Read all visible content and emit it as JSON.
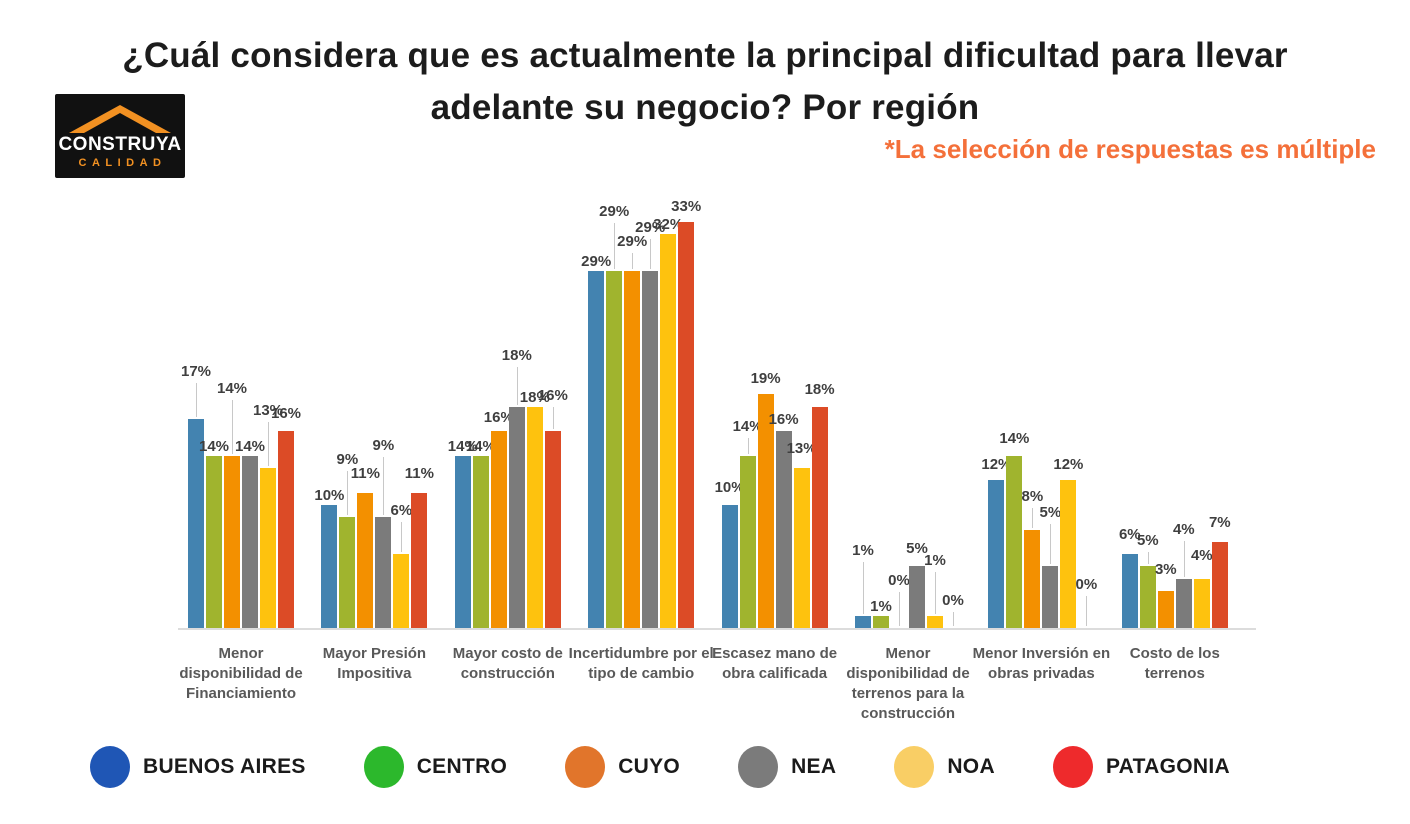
{
  "title": {
    "line1": "¿Cuál considera que es actualmente la principal dificultad para llevar",
    "line2": "adelante su negocio? Por región"
  },
  "subtitle": "*La selección de respuestas es múltiple",
  "logo": {
    "name": "CONSTRUYA",
    "tagline": "CALIDAD",
    "roof_color": "#f29122",
    "box_color": "#111111"
  },
  "chart_data": {
    "type": "bar",
    "title": "¿Cuál considera que es actualmente la principal dificultad para llevar adelante su negocio? Por región",
    "note": "*La selección de respuestas es múltiple",
    "unit": "%",
    "categories": [
      "Menor disponibilidad de Financiamiento",
      "Mayor Presión Impositiva",
      "Mayor costo de construcción",
      "Incertidumbre por el tipo de cambio",
      "Escasez mano de obra calificada",
      "Menor disponibilidad de terrenos para la construcción",
      "Menor Inversión en obras privadas",
      "Costo de los terrenos"
    ],
    "series": [
      {
        "name": "BUENOS AIRES",
        "bar_color": "#4383b0",
        "legend_color": "#1f56b5",
        "values": [
          17,
          10,
          14,
          29,
          10,
          1,
          12,
          6
        ]
      },
      {
        "name": "CENTRO",
        "bar_color": "#a0b42e",
        "legend_color": "#2cb82c",
        "values": [
          14,
          9,
          14,
          29,
          14,
          1,
          14,
          5
        ]
      },
      {
        "name": "CUYO",
        "bar_color": "#f39000",
        "legend_color": "#e1752b",
        "values": [
          14,
          11,
          16,
          29,
          19,
          0,
          8,
          3
        ]
      },
      {
        "name": "NEA",
        "bar_color": "#7b7b7b",
        "legend_color": "#7b7b7b",
        "values": [
          14,
          9,
          18,
          29,
          16,
          5,
          5,
          4
        ]
      },
      {
        "name": "NOA",
        "bar_color": "#fec20e",
        "legend_color": "#f9ce65",
        "values": [
          13,
          6,
          18,
          32,
          13,
          1,
          12,
          4
        ]
      },
      {
        "name": "PATAGONIA",
        "bar_color": "#dc4b26",
        "legend_color": "#ee2a2c",
        "values": [
          16,
          11,
          16,
          33,
          18,
          0,
          0,
          7
        ]
      }
    ],
    "ylim": [
      0,
      35
    ],
    "grid": false,
    "data_labels": true,
    "legend_position": "bottom",
    "label_offsets": [
      [
        38,
        0,
        58,
        0,
        48,
        8
      ],
      [
        0,
        48,
        10,
        62,
        34,
        10
      ],
      [
        0,
        0,
        4,
        42,
        0,
        26
      ],
      [
        0,
        50,
        20,
        34,
        0,
        6
      ],
      [
        8,
        20,
        6,
        2,
        10,
        8
      ],
      [
        56,
        0,
        38,
        8,
        46,
        18
      ],
      [
        6,
        8,
        24,
        44,
        6,
        34
      ],
      [
        10,
        16,
        12,
        40,
        14,
        10
      ]
    ]
  }
}
